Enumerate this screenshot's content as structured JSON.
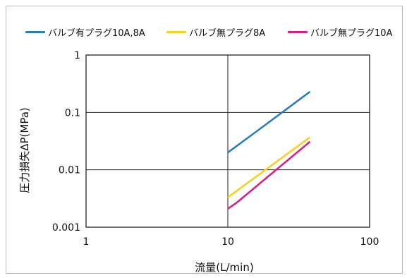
{
  "chart_data": {
    "type": "line",
    "title": "",
    "xlabel": "流量(L/min)",
    "ylabel": "圧力損失ΔP(MPa)",
    "x_scale": "log",
    "y_scale": "log",
    "xlim": [
      1,
      100
    ],
    "ylim": [
      0.001,
      1
    ],
    "x_ticks": [
      "1",
      "10",
      "100"
    ],
    "y_ticks": [
      "0.001",
      "0.01",
      "0.1",
      "1"
    ],
    "grid": true,
    "legend_position": "top",
    "series": [
      {
        "name": "バルブ有プラグ10A,8A",
        "color": "#2a7fb8",
        "x": [
          10,
          16,
          38
        ],
        "y": [
          0.02,
          0.047,
          0.23
        ]
      },
      {
        "name": "バルブ無プラグ8A",
        "color": "#f5d21f",
        "x": [
          10,
          38
        ],
        "y": [
          0.0033,
          0.037
        ]
      },
      {
        "name": "バルブ無プラグ10A",
        "color": "#d6218a",
        "x": [
          10,
          11.6,
          38
        ],
        "y": [
          0.0021,
          0.0027,
          0.031
        ]
      }
    ]
  }
}
